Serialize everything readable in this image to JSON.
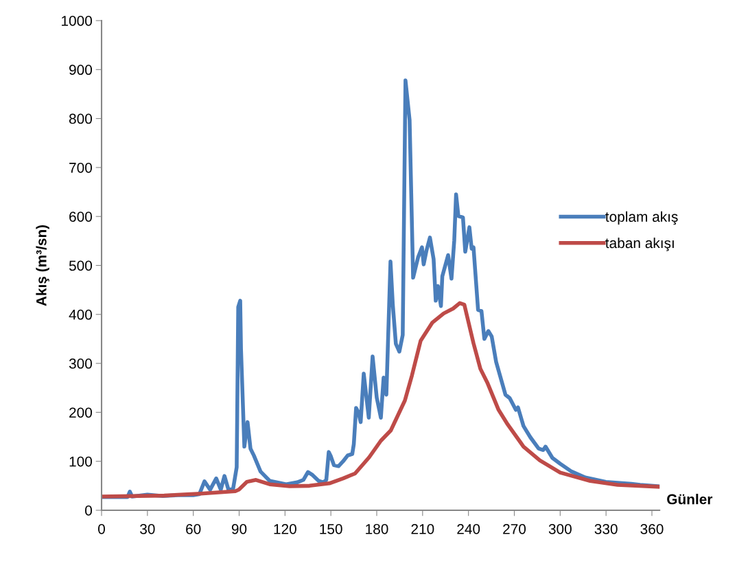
{
  "chart_data": {
    "type": "line",
    "xlabel": "Günler",
    "ylabel": "Akış (m³/sn)",
    "xlim": [
      0,
      365
    ],
    "xticks": [
      0,
      30,
      60,
      90,
      120,
      150,
      180,
      210,
      240,
      270,
      300,
      330,
      360
    ],
    "ylim": [
      0,
      1000
    ],
    "yticks": [
      0,
      100,
      200,
      300,
      400,
      500,
      600,
      700,
      800,
      900,
      1000
    ],
    "grid": false,
    "legend": "right",
    "marker": "none",
    "line_style": "solid",
    "series": [
      {
        "name": "toplam akış",
        "color": "#4a7ebb",
        "x": [
          0,
          10,
          17,
          18.5,
          20,
          30,
          40,
          50,
          60,
          64,
          67.3,
          71,
          75,
          78,
          80.4,
          83,
          86,
          88.4,
          89.4,
          90.7,
          91.2,
          93.4,
          95.5,
          97.4,
          99.6,
          104,
          110,
          116,
          120.7,
          128,
          132,
          135,
          138,
          142,
          145,
          147,
          148.6,
          150,
          152,
          155,
          158,
          161,
          164,
          165,
          166.5,
          168,
          169.5,
          171.5,
          174.8,
          177.3,
          180,
          182.7,
          184.5,
          186.3,
          189,
          190.5,
          192.5,
          194.8,
          197,
          198.8,
          201.5,
          203.8,
          207,
          209.6,
          210.7,
          212.5,
          214.8,
          217.2,
          218.6,
          220,
          222,
          222.9,
          226.7,
          228.9,
          230.7,
          231.9,
          233.4,
          236.4,
          237.9,
          240.6,
          242.1,
          243.3,
          246.3,
          248.5,
          250.4,
          253,
          255.2,
          258.1,
          264.2,
          267,
          271,
          272.4,
          276,
          280.5,
          285.9,
          288.9,
          290.4,
          294.9,
          300,
          307.5,
          316.4,
          329.9,
          346.5,
          352.3,
          364.5
        ],
        "values": [
          27,
          27,
          27,
          38,
          28,
          32,
          29,
          31,
          31,
          33,
          59,
          42,
          65,
          42,
          70,
          42,
          43,
          88,
          415,
          428,
          330,
          130,
          180,
          126,
          112,
          79,
          60,
          56,
          53,
          57,
          62,
          78,
          72,
          60,
          57,
          62,
          119,
          110,
          92,
          90,
          100,
          112,
          115,
          135,
          209,
          200,
          180,
          279,
          189,
          314,
          230,
          189,
          271,
          236,
          508,
          420,
          340,
          324,
          358,
          878,
          797,
          475,
          516,
          537,
          502,
          530,
          557,
          513,
          428,
          458,
          417,
          478,
          521,
          473,
          551,
          645,
          601,
          598,
          528,
          578,
          534,
          537,
          409,
          407,
          350,
          366,
          355,
          303,
          236,
          229,
          205,
          210,
          172,
          149,
          126,
          123,
          130,
          107,
          95,
          79,
          67,
          58,
          54,
          52,
          49
        ]
      },
      {
        "name": "taban akışı",
        "color": "#be4b48",
        "x": [
          0,
          41,
          65,
          87.5,
          89.8,
          95,
          101,
          110,
          123,
          136,
          149,
          158,
          165.8,
          175,
          182.7,
          189.2,
          198.4,
          203,
          208.7,
          216.3,
          223.8,
          230,
          234.3,
          237.3,
          243.3,
          247.8,
          252.3,
          259.7,
          265.7,
          276,
          286.7,
          300,
          319.6,
          337.5,
          364.5
        ],
        "values": [
          28,
          30,
          34,
          39,
          42,
          58,
          62,
          53,
          49,
          50,
          55,
          65,
          75,
          108,
          142,
          163,
          224,
          275,
          346,
          383,
          402,
          412,
          423,
          420,
          341,
          289,
          261,
          205,
          175,
          130,
          102,
          77,
          60,
          52,
          48
        ]
      }
    ]
  }
}
